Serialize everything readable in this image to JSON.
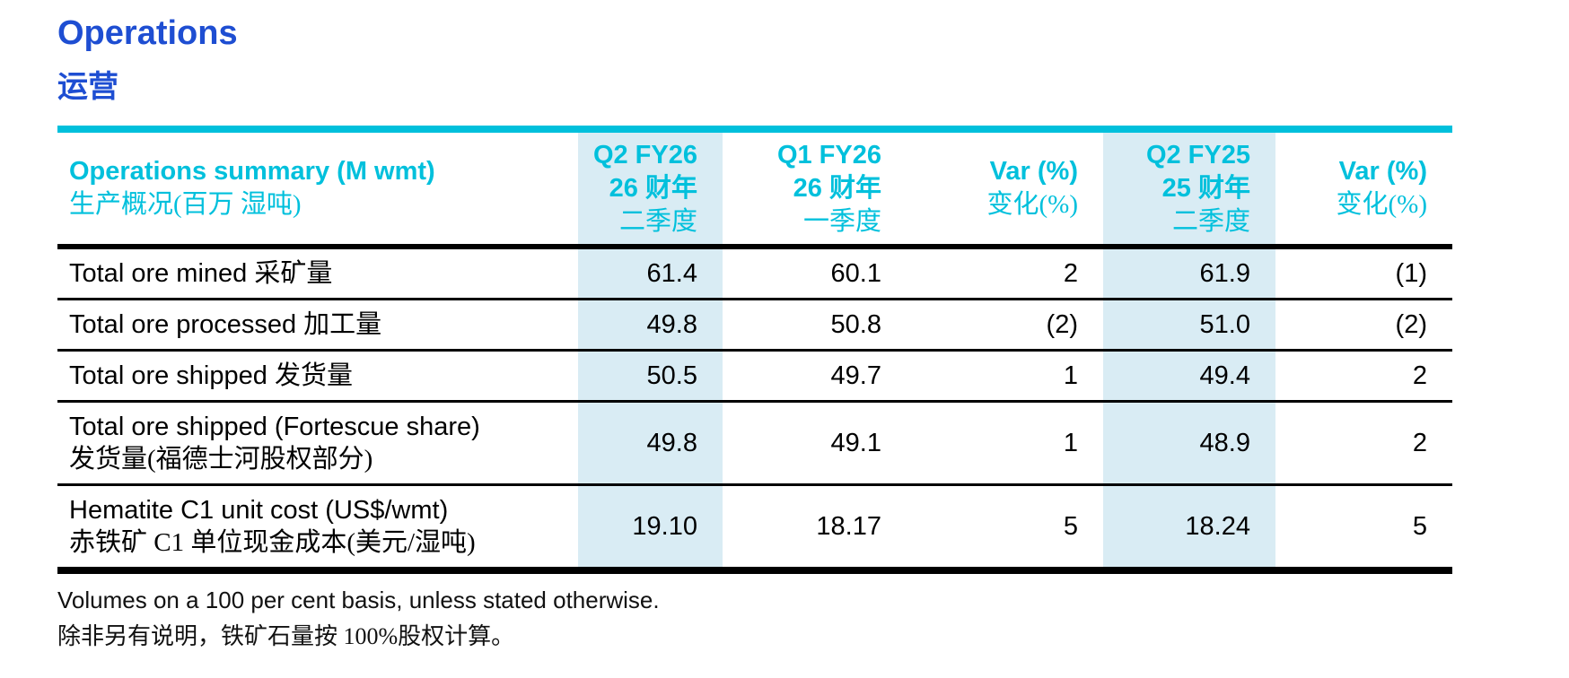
{
  "page": {
    "title_en": "Operations",
    "title_zh": "运营",
    "footnote_en": "Volumes on a 100 per cent basis, unless stated otherwise.",
    "footnote_zh": "除非另有说明，铁矿石量按 100%股权计算。"
  },
  "colors": {
    "accent_cyan": "#00c0dc",
    "shade_blue": "#d9ecf4",
    "title_blue": "#1e4ed2"
  },
  "table": {
    "header": {
      "label_en": "Operations summary (M wmt)",
      "label_zh": "生产概况(百万 湿吨)",
      "columns": [
        {
          "lines": [
            "Q2 FY26",
            "26 财年",
            "二季度"
          ],
          "shaded": true
        },
        {
          "lines": [
            "Q1 FY26",
            "26 财年",
            "一季度"
          ],
          "shaded": false
        },
        {
          "lines": [
            "Var (%)",
            "变化(%)"
          ],
          "shaded": false
        },
        {
          "lines": [
            "Q2 FY25",
            "25 财年",
            "二季度"
          ],
          "shaded": true
        },
        {
          "lines": [
            "Var (%)",
            "变化(%)"
          ],
          "shaded": false
        }
      ]
    },
    "rows": [
      {
        "label_en": "Total ore mined",
        "label_zh": "采矿量",
        "two_line": false,
        "values": [
          "61.4",
          "60.1",
          "2",
          "61.9",
          "(1)"
        ]
      },
      {
        "label_en": "Total ore processed",
        "label_zh": "加工量",
        "two_line": false,
        "values": [
          "49.8",
          "50.8",
          "(2)",
          "51.0",
          "(2)"
        ]
      },
      {
        "label_en": "Total ore shipped",
        "label_zh": "发货量",
        "two_line": false,
        "values": [
          "50.5",
          "49.7",
          "1",
          "49.4",
          "2"
        ]
      },
      {
        "label_en": "Total ore shipped (Fortescue share)",
        "label_zh": "发货量(福德士河股权部分)",
        "two_line": true,
        "values": [
          "49.8",
          "49.1",
          "1",
          "48.9",
          "2"
        ]
      },
      {
        "label_en": "Hematite C1 unit cost (US$/wmt)",
        "label_zh": "赤铁矿 C1 单位现金成本(美元/湿吨)",
        "two_line": true,
        "values": [
          "19.10",
          "18.17",
          "5",
          "18.24",
          "5"
        ]
      }
    ]
  }
}
